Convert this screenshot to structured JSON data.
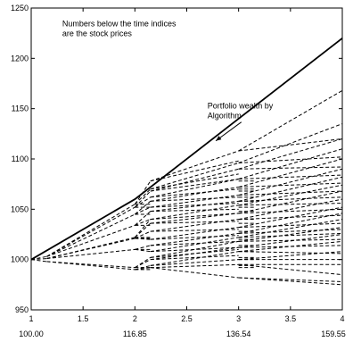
{
  "chart_data": {
    "type": "line",
    "title": "",
    "xlabel": "",
    "ylabel": "",
    "xlim": [
      1,
      4
    ],
    "ylim": [
      950,
      1250
    ],
    "grid": false,
    "x_ticks": [
      1,
      1.5,
      2,
      2.5,
      3,
      3.5,
      4
    ],
    "x_tick_labels": [
      "1",
      "1.5",
      "2",
      "2.5",
      "3",
      "3.5",
      "4"
    ],
    "y_ticks": [
      950,
      1000,
      1050,
      1100,
      1150,
      1200,
      1250
    ],
    "y_tick_labels": [
      "950",
      "1000",
      "1050",
      "1100",
      "1150",
      "1200",
      "1250"
    ],
    "stock_prices": [
      {
        "x": 1,
        "label": "100.00"
      },
      {
        "x": 2,
        "label": "116.85"
      },
      {
        "x": 3,
        "label": "136.54"
      },
      {
        "x": 4,
        "label": "159.55"
      }
    ],
    "annotations": [
      {
        "text": [
          "Numbers below the time indices",
          "are the stock prices"
        ],
        "anchor_x": 1.3,
        "anchor_y": 1232
      },
      {
        "text": [
          "Portfolio wealth by",
          "Algorithm"
        ],
        "anchor_x": 2.7,
        "anchor_y": 1150,
        "arrow_to_x": 2.78,
        "arrow_to_y": 1118
      }
    ],
    "series": [
      {
        "name": "",
        "style": "solid",
        "x": [
          1,
          2,
          3,
          4
        ],
        "values": [
          1000,
          1060,
          1140,
          1220
        ]
      }
    ],
    "tree_x": [
      1,
      1.15,
      2,
      2.15,
      3,
      3.15,
      4
    ],
    "tree_start": [
      1,
      1000
    ],
    "tree_from_start": [
      998,
      1001,
      1003
    ],
    "tree_stage1": [
      {
        "from": 998,
        "to": [
          990,
          992
        ]
      },
      {
        "from": 1001,
        "to": [
          1010,
          1021,
          1022
        ]
      },
      {
        "from": 1003,
        "to": [
          1034,
          1045,
          1052,
          1055
        ]
      }
    ],
    "tree_stage2": [
      {
        "from": 990,
        "to": [
          992,
          994
        ]
      },
      {
        "from": 992,
        "to": [
          1000,
          1002
        ]
      },
      {
        "from": 1010,
        "to": [
          1008,
          1014
        ]
      },
      {
        "from": 1021,
        "to": [
          1020,
          1028
        ]
      },
      {
        "from": 1022,
        "to": [
          1036,
          1040
        ]
      },
      {
        "from": 1034,
        "to": [
          1040,
          1048
        ]
      },
      {
        "from": 1045,
        "to": [
          1052,
          1058
        ]
      },
      {
        "from": 1052,
        "to": [
          1062,
          1068
        ]
      },
      {
        "from": 1055,
        "to": [
          1070,
          1078
        ]
      }
    ],
    "tree_stage3": [
      {
        "from": 992,
        "to": [
          982,
          995
        ]
      },
      {
        "from": 994,
        "to": [
          1000,
          1008
        ]
      },
      {
        "from": 1000,
        "to": [
          1004,
          1012
        ]
      },
      {
        "from": 1002,
        "to": [
          1010,
          1018
        ]
      },
      {
        "from": 1008,
        "to": [
          1012,
          1022
        ]
      },
      {
        "from": 1014,
        "to": [
          1018,
          1026
        ]
      },
      {
        "from": 1020,
        "to": [
          1024,
          1032
        ]
      },
      {
        "from": 1028,
        "to": [
          1030,
          1040
        ]
      },
      {
        "from": 1036,
        "to": [
          1038,
          1046
        ]
      },
      {
        "from": 1040,
        "to": [
          1046,
          1054
        ]
      },
      {
        "from": 1048,
        "to": [
          1050,
          1058
        ]
      },
      {
        "from": 1052,
        "to": [
          1056,
          1064
        ]
      },
      {
        "from": 1058,
        "to": [
          1062,
          1072
        ]
      },
      {
        "from": 1062,
        "to": [
          1070,
          1080
        ]
      },
      {
        "from": 1068,
        "to": [
          1080,
          1090
        ]
      },
      {
        "from": 1070,
        "to": [
          1085,
          1096
        ]
      },
      {
        "from": 1078,
        "to": [
          1098,
          1108
        ]
      }
    ],
    "tree_stage4": [
      {
        "from": 982,
        "to": [
          975,
          978
        ]
      },
      {
        "from": 995,
        "to": [
          985,
          995
        ]
      },
      {
        "from": 1000,
        "to": [
          1000,
          1008
        ]
      },
      {
        "from": 1008,
        "to": [
          1006,
          1018
        ]
      },
      {
        "from": 1012,
        "to": [
          1014,
          1025
        ]
      },
      {
        "from": 1018,
        "to": [
          1020,
          1032
        ]
      },
      {
        "from": 1022,
        "to": [
          1026,
          1040
        ]
      },
      {
        "from": 1026,
        "to": [
          1030,
          1046
        ]
      },
      {
        "from": 1032,
        "to": [
          1036,
          1052
        ]
      },
      {
        "from": 1040,
        "to": [
          1044,
          1060
        ]
      },
      {
        "from": 1046,
        "to": [
          1050,
          1068
        ]
      },
      {
        "from": 1054,
        "to": [
          1056,
          1074
        ]
      },
      {
        "from": 1058,
        "to": [
          1062,
          1082
        ]
      },
      {
        "from": 1064,
        "to": [
          1068,
          1090
        ]
      },
      {
        "from": 1072,
        "to": [
          1076,
          1100
        ]
      },
      {
        "from": 1080,
        "to": [
          1084,
          1110
        ]
      },
      {
        "from": 1090,
        "to": [
          1092,
          1120
        ]
      },
      {
        "from": 1096,
        "to": [
          1102,
          1135
        ]
      },
      {
        "from": 1108,
        "to": [
          1120,
          1168
        ]
      }
    ]
  }
}
